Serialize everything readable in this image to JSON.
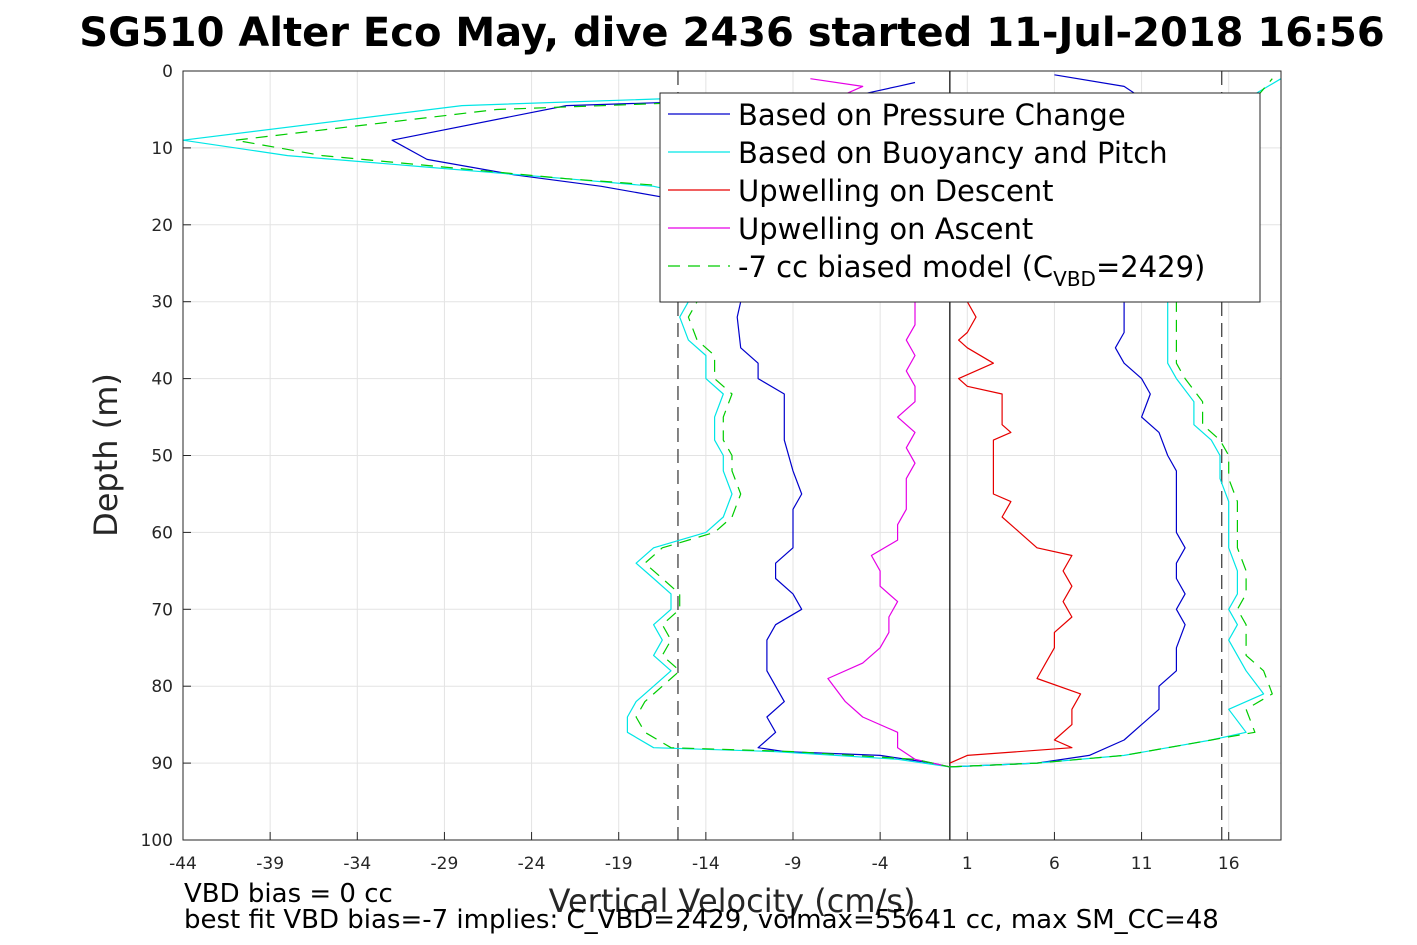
{
  "chart_data": {
    "type": "line",
    "title": "SG510 Alter Eco May, dive 2436 started 11-Jul-2018 16:56",
    "xlabel": "Vertical Velocity (cm/s)",
    "ylabel": "Depth (m)",
    "xlim": [
      -44,
      19
    ],
    "ylim": [
      0,
      100
    ],
    "y_reversed": true,
    "grid": true,
    "x_ticks": [
      -44,
      -39,
      -34,
      -29,
      -24,
      -19,
      -14,
      -9,
      -4,
      1,
      6,
      11,
      16
    ],
    "y_ticks": [
      0,
      10,
      20,
      30,
      40,
      50,
      60,
      70,
      80,
      90,
      100
    ],
    "reference_lines": {
      "zero_line_x": 0,
      "dashed_lines_x": [
        -15.6,
        15.6
      ]
    },
    "legend": {
      "placement": "top-right",
      "entries": [
        {
          "label": "Based on Pressure Change",
          "color": "#0000cc",
          "dashed": false
        },
        {
          "label": "Based on Buoyancy and Pitch",
          "color": "#00e6e6",
          "dashed": false
        },
        {
          "label": "Upwelling on Descent",
          "color": "#e60000",
          "dashed": false
        },
        {
          "label": "Upwelling on Ascent",
          "color": "#e600e6",
          "dashed": false
        },
        {
          "label_main": "-7 cc biased model (C",
          "label_sub": "VBD",
          "label_tail": "=2429)",
          "color": "#00cc00",
          "dashed": true
        }
      ]
    },
    "series": [
      {
        "name": "Based on Pressure Change (descent)",
        "color": "#0000cc",
        "dashed": false,
        "points": [
          [
            -2,
            1.5
          ],
          [
            -3,
            2
          ],
          [
            -5,
            3
          ],
          [
            -8,
            3.5
          ],
          [
            -22,
            4.5
          ],
          [
            -32,
            9
          ],
          [
            -30,
            11.5
          ],
          [
            -25,
            13.5
          ],
          [
            -20,
            15
          ],
          [
            -15,
            17
          ],
          [
            -14,
            22
          ],
          [
            -12,
            27
          ],
          [
            -12,
            30
          ],
          [
            -12.2,
            32
          ],
          [
            -12,
            36
          ],
          [
            -11,
            38
          ],
          [
            -11,
            40
          ],
          [
            -9.5,
            42
          ],
          [
            -9.5,
            45
          ],
          [
            -9.5,
            48
          ],
          [
            -9,
            52
          ],
          [
            -8.5,
            55
          ],
          [
            -9,
            57
          ],
          [
            -9,
            60
          ],
          [
            -9,
            62
          ],
          [
            -10,
            64
          ],
          [
            -10,
            66
          ],
          [
            -9,
            68
          ],
          [
            -8.5,
            70
          ],
          [
            -10,
            72
          ],
          [
            -10.5,
            74
          ],
          [
            -10.5,
            78
          ],
          [
            -10,
            80
          ],
          [
            -9.5,
            82
          ],
          [
            -10.5,
            84
          ],
          [
            -10,
            86
          ],
          [
            -11,
            88
          ],
          [
            -9.5,
            88.5
          ],
          [
            -4,
            89
          ],
          [
            -1,
            90
          ],
          [
            0,
            90.5
          ]
        ]
      },
      {
        "name": "Based on Pressure Change (ascent)",
        "color": "#0000cc",
        "dashed": false,
        "points": [
          [
            0,
            90.5
          ],
          [
            2,
            90.3
          ],
          [
            5,
            90
          ],
          [
            8,
            89
          ],
          [
            10,
            87
          ],
          [
            11,
            85
          ],
          [
            12,
            83
          ],
          [
            12,
            80
          ],
          [
            13,
            78
          ],
          [
            13,
            75
          ],
          [
            13.5,
            72
          ],
          [
            13,
            70
          ],
          [
            13.5,
            68
          ],
          [
            13,
            66
          ],
          [
            13,
            64
          ],
          [
            13.5,
            62
          ],
          [
            13,
            60
          ],
          [
            13,
            58
          ],
          [
            13,
            55
          ],
          [
            13,
            52
          ],
          [
            12.5,
            50
          ],
          [
            12,
            47
          ],
          [
            11,
            45
          ],
          [
            11.5,
            42
          ],
          [
            11,
            40
          ],
          [
            10,
            38
          ],
          [
            9.5,
            36
          ],
          [
            10,
            34
          ],
          [
            10,
            31
          ],
          [
            10,
            28
          ],
          [
            10,
            20
          ],
          [
            11,
            10
          ],
          [
            12,
            5
          ],
          [
            10,
            2
          ],
          [
            6,
            0.5
          ]
        ]
      },
      {
        "name": "Based on Buoyancy and Pitch (descent)",
        "color": "#00e6e6",
        "dashed": false,
        "points": [
          [
            -15,
            3.5
          ],
          [
            -28,
            4.5
          ],
          [
            -44,
            9
          ],
          [
            -38,
            11
          ],
          [
            -30,
            12.5
          ],
          [
            -22,
            14
          ],
          [
            -17,
            15
          ],
          [
            -15,
            16
          ],
          [
            -15,
            22
          ],
          [
            -15,
            27
          ],
          [
            -15,
            30
          ],
          [
            -15.5,
            32
          ],
          [
            -15,
            35
          ],
          [
            -14,
            37
          ],
          [
            -14,
            40
          ],
          [
            -13,
            42
          ],
          [
            -13.5,
            45
          ],
          [
            -13.5,
            48
          ],
          [
            -13,
            50
          ],
          [
            -13,
            52
          ],
          [
            -12.5,
            55
          ],
          [
            -13,
            58
          ],
          [
            -14,
            60
          ],
          [
            -17,
            62
          ],
          [
            -18,
            64
          ],
          [
            -17,
            66
          ],
          [
            -16,
            68
          ],
          [
            -16,
            70
          ],
          [
            -17,
            72
          ],
          [
            -16.5,
            74
          ],
          [
            -17,
            76
          ],
          [
            -16,
            78
          ],
          [
            -17,
            80
          ],
          [
            -18,
            82
          ],
          [
            -18.5,
            84
          ],
          [
            -18.5,
            86
          ],
          [
            -17,
            88
          ],
          [
            -10,
            88.5
          ],
          [
            -3,
            89.5
          ],
          [
            0,
            90.5
          ]
        ]
      },
      {
        "name": "Based on Buoyancy and Pitch (ascent)",
        "color": "#00e6e6",
        "dashed": false,
        "points": [
          [
            0,
            90.5
          ],
          [
            5,
            90
          ],
          [
            10,
            89
          ],
          [
            15,
            87
          ],
          [
            17,
            86
          ],
          [
            16,
            83
          ],
          [
            18,
            81
          ],
          [
            17,
            78
          ],
          [
            16.5,
            76
          ],
          [
            16,
            74
          ],
          [
            16.5,
            72
          ],
          [
            16,
            70
          ],
          [
            16.5,
            68
          ],
          [
            16.5,
            65
          ],
          [
            16,
            62
          ],
          [
            16,
            59
          ],
          [
            16,
            56
          ],
          [
            15.5,
            53
          ],
          [
            15.5,
            50
          ],
          [
            15,
            48
          ],
          [
            14,
            46
          ],
          [
            14,
            43
          ],
          [
            13,
            40
          ],
          [
            12.5,
            38
          ],
          [
            12.5,
            36
          ],
          [
            12.5,
            33
          ],
          [
            12.5,
            30
          ],
          [
            12,
            20
          ],
          [
            14,
            10
          ],
          [
            16,
            5
          ],
          [
            19,
            1
          ]
        ]
      },
      {
        "name": "Upwelling on Descent",
        "color": "#e60000",
        "dashed": false,
        "points": [
          [
            1,
            30
          ],
          [
            1.5,
            32
          ],
          [
            1,
            34
          ],
          [
            0.5,
            35
          ],
          [
            1,
            36
          ],
          [
            2.5,
            38
          ],
          [
            0.5,
            40
          ],
          [
            1,
            41
          ],
          [
            3,
            42
          ],
          [
            3,
            44
          ],
          [
            3,
            46
          ],
          [
            3.5,
            47
          ],
          [
            2.5,
            48
          ],
          [
            2.5,
            51
          ],
          [
            2.5,
            53
          ],
          [
            2.5,
            55
          ],
          [
            3.5,
            56
          ],
          [
            3,
            58
          ],
          [
            4,
            60
          ],
          [
            5,
            62
          ],
          [
            7,
            63
          ],
          [
            6.5,
            65
          ],
          [
            7,
            67
          ],
          [
            6.5,
            69
          ],
          [
            7,
            71
          ],
          [
            6,
            73
          ],
          [
            6,
            75
          ],
          [
            5.5,
            77
          ],
          [
            5,
            79
          ],
          [
            7.5,
            81
          ],
          [
            7,
            83
          ],
          [
            7,
            85
          ],
          [
            6,
            87
          ],
          [
            7,
            88
          ],
          [
            1,
            89
          ],
          [
            0,
            90
          ]
        ]
      },
      {
        "name": "Upwelling on Ascent",
        "color": "#e600e6",
        "dashed": false,
        "points": [
          [
            0,
            90.5
          ],
          [
            -2,
            89.5
          ],
          [
            -3,
            88
          ],
          [
            -3,
            86
          ],
          [
            -5,
            84
          ],
          [
            -6,
            82
          ],
          [
            -7,
            79
          ],
          [
            -5,
            77
          ],
          [
            -4,
            75
          ],
          [
            -3.5,
            73
          ],
          [
            -3.5,
            71
          ],
          [
            -3,
            69
          ],
          [
            -4,
            67
          ],
          [
            -4,
            65
          ],
          [
            -4.5,
            63
          ],
          [
            -3,
            61
          ],
          [
            -3,
            59
          ],
          [
            -2.5,
            57
          ],
          [
            -2.5,
            55
          ],
          [
            -2.5,
            53
          ],
          [
            -2,
            51
          ],
          [
            -2.5,
            49
          ],
          [
            -2,
            47
          ],
          [
            -3,
            45
          ],
          [
            -2,
            43
          ],
          [
            -2,
            41
          ],
          [
            -2.5,
            39
          ],
          [
            -2,
            37
          ],
          [
            -2.5,
            35
          ],
          [
            -2,
            33
          ],
          [
            -2,
            31
          ],
          [
            -2,
            28
          ],
          [
            -3,
            20
          ],
          [
            -5,
            10
          ],
          [
            -6,
            3
          ],
          [
            -5,
            2
          ],
          [
            -8,
            1
          ]
        ]
      },
      {
        "name": "-7 cc biased model (descent)",
        "color": "#00cc00",
        "dashed": true,
        "points": [
          [
            -14,
            4
          ],
          [
            -26,
            5
          ],
          [
            -41,
            9
          ],
          [
            -36,
            11
          ],
          [
            -29,
            12.5
          ],
          [
            -22,
            14
          ],
          [
            -16,
            15
          ],
          [
            -14,
            17
          ],
          [
            -14.5,
            22
          ],
          [
            -14.5,
            27
          ],
          [
            -14.5,
            30
          ],
          [
            -15,
            32
          ],
          [
            -14.5,
            35
          ],
          [
            -13.5,
            37
          ],
          [
            -13.5,
            40
          ],
          [
            -12.5,
            42
          ],
          [
            -13,
            45
          ],
          [
            -13,
            48
          ],
          [
            -12.5,
            50
          ],
          [
            -12.5,
            52
          ],
          [
            -12,
            55
          ],
          [
            -12.5,
            58
          ],
          [
            -13.5,
            60
          ],
          [
            -16.5,
            62
          ],
          [
            -17.5,
            64
          ],
          [
            -16.5,
            66
          ],
          [
            -15.5,
            68
          ],
          [
            -15.5,
            70
          ],
          [
            -16.5,
            72
          ],
          [
            -16,
            74
          ],
          [
            -16.5,
            76
          ],
          [
            -15.5,
            78
          ],
          [
            -16.5,
            80
          ],
          [
            -17.5,
            82
          ],
          [
            -18,
            84
          ],
          [
            -17.5,
            86
          ],
          [
            -16,
            88
          ],
          [
            -9,
            88.5
          ],
          [
            -2,
            89.5
          ],
          [
            0,
            90.5
          ]
        ]
      },
      {
        "name": "-7 cc biased model (ascent)",
        "color": "#00cc00",
        "dashed": true,
        "points": [
          [
            0,
            90.5
          ],
          [
            5,
            90
          ],
          [
            10,
            89
          ],
          [
            15,
            87
          ],
          [
            17.5,
            86
          ],
          [
            17,
            83
          ],
          [
            18.5,
            81
          ],
          [
            18,
            78
          ],
          [
            17,
            76
          ],
          [
            17,
            74
          ],
          [
            17,
            72
          ],
          [
            16.5,
            70
          ],
          [
            17,
            68
          ],
          [
            17,
            65
          ],
          [
            16.5,
            62
          ],
          [
            16.5,
            59
          ],
          [
            16.5,
            56
          ],
          [
            16,
            53
          ],
          [
            16,
            50
          ],
          [
            15.5,
            48
          ],
          [
            14.5,
            46
          ],
          [
            14.5,
            43
          ],
          [
            13.5,
            40
          ],
          [
            13,
            38
          ],
          [
            13,
            36
          ],
          [
            13,
            33
          ],
          [
            13,
            30
          ],
          [
            13,
            20
          ],
          [
            15,
            10
          ],
          [
            17,
            5
          ],
          [
            18.5,
            1
          ]
        ]
      }
    ],
    "notes": [
      "VBD bias = 0 cc",
      "best fit VBD bias=-7 implies: C_VBD=2429, volmax=55641 cc, max SM_CC=48"
    ]
  }
}
